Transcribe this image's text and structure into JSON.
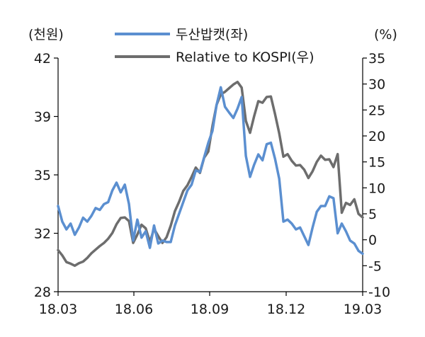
{
  "chart_data": {
    "type": "line",
    "title": "",
    "left_axis_unit": "(천원)",
    "right_axis_unit": "(%)",
    "x_ticks": [
      "18.03",
      "18.06",
      "18.09",
      "18.12",
      "19.03"
    ],
    "left_ticks": [
      "42",
      "39",
      "35",
      "32",
      "28"
    ],
    "right_ticks": [
      "35",
      "30",
      "25",
      "20",
      "15",
      "10",
      "5",
      "0",
      "-5",
      "-10"
    ],
    "left_ylim": [
      28,
      42
    ],
    "right_ylim": [
      -10,
      35
    ],
    "legend_position": "top-center",
    "series": [
      {
        "name": "두산밥캣(좌)",
        "axis": "left",
        "color": "#5b8fd0",
        "points": [
          [
            "18.03",
            33.4
          ],
          [
            "18.03+",
            32.6
          ],
          [
            "18.03+",
            32.2
          ],
          [
            "18.03+",
            32.5
          ],
          [
            "18.03+",
            31.9
          ],
          [
            "18.03+",
            32.3
          ],
          [
            "18.04",
            32.8
          ],
          [
            "18.04+",
            32.6
          ],
          [
            "18.04+",
            32.9
          ],
          [
            "18.04+",
            33.3
          ],
          [
            "18.04+",
            33.2
          ],
          [
            "18.04+",
            33.5
          ],
          [
            "18.05",
            33.6
          ],
          [
            "18.05+",
            34.2
          ],
          [
            "18.05+",
            34.6
          ],
          [
            "18.05+",
            34.1
          ],
          [
            "18.05+",
            34.5
          ],
          [
            "18.05+",
            33.5
          ],
          [
            "18.06",
            31.5
          ],
          [
            "18.06+",
            32.7
          ],
          [
            "18.06+",
            31.7
          ],
          [
            "18.06+",
            32.1
          ],
          [
            "18.06+",
            31.0
          ],
          [
            "18.06+",
            32.4
          ],
          [
            "18.07",
            31.3
          ],
          [
            "18.07+",
            31.5
          ],
          [
            "18.07+",
            31.4
          ],
          [
            "18.07+",
            31.4
          ],
          [
            "18.07+",
            32.4
          ],
          [
            "18.07+",
            33.0
          ],
          [
            "18.08",
            33.6
          ],
          [
            "18.08+",
            34.2
          ],
          [
            "18.08+",
            34.5
          ],
          [
            "18.08+",
            35.3
          ],
          [
            "18.08+",
            35.2
          ],
          [
            "18.08+",
            36.2
          ],
          [
            "18.09",
            37.2
          ],
          [
            "18.09+",
            38.0
          ],
          [
            "18.09+",
            39.6
          ],
          [
            "18.09+",
            40.5
          ],
          [
            "18.09+",
            39.5
          ],
          [
            "18.09+",
            39.2
          ],
          [
            "18.10",
            38.9
          ],
          [
            "18.10+",
            39.4
          ],
          [
            "18.10+",
            40.0
          ],
          [
            "18.10+",
            36.3
          ],
          [
            "18.10+",
            34.9
          ],
          [
            "18.10+",
            35.7
          ],
          [
            "18.11",
            36.4
          ],
          [
            "18.11+",
            36.0
          ],
          [
            "18.11+",
            37.1
          ],
          [
            "18.11+",
            37.2
          ],
          [
            "18.11+",
            36.1
          ],
          [
            "18.11+",
            34.8
          ],
          [
            "18.12",
            32.6
          ],
          [
            "18.12+",
            32.7
          ],
          [
            "18.12+",
            32.5
          ],
          [
            "18.12+",
            32.2
          ],
          [
            "18.12+",
            32.3
          ],
          [
            "18.12+",
            31.8
          ],
          [
            "19.01",
            31.2
          ],
          [
            "19.01+",
            32.3
          ],
          [
            "19.01+",
            33.1
          ],
          [
            "19.01+",
            33.4
          ],
          [
            "19.01+",
            33.4
          ],
          [
            "19.01+",
            33.9
          ],
          [
            "19.02",
            33.8
          ],
          [
            "19.02+",
            32.0
          ],
          [
            "19.02+",
            32.5
          ],
          [
            "19.02+",
            32.1
          ],
          [
            "19.02+",
            31.5
          ],
          [
            "19.02+",
            31.3
          ],
          [
            "19.03",
            30.8
          ],
          [
            "19.03+",
            30.6
          ]
        ]
      },
      {
        "name": "Relative to KOSPI(우)",
        "axis": "right",
        "color": "#6d6d6d",
        "points": [
          [
            "18.03",
            -2.0
          ],
          [
            "18.03+",
            -3.0
          ],
          [
            "18.03+",
            -4.3
          ],
          [
            "18.03+",
            -4.6
          ],
          [
            "18.03+",
            -5.0
          ],
          [
            "18.03+",
            -4.5
          ],
          [
            "18.04",
            -4.2
          ],
          [
            "18.04+",
            -3.5
          ],
          [
            "18.04+",
            -2.6
          ],
          [
            "18.04+",
            -1.9
          ],
          [
            "18.04+",
            -1.2
          ],
          [
            "18.04+",
            -0.6
          ],
          [
            "18.05",
            0.2
          ],
          [
            "18.05+",
            1.3
          ],
          [
            "18.05+",
            3.0
          ],
          [
            "18.05+",
            4.2
          ],
          [
            "18.05+",
            4.3
          ],
          [
            "18.05+",
            3.6
          ],
          [
            "18.06",
            -0.6
          ],
          [
            "18.06+",
            1.0
          ],
          [
            "18.06+",
            2.9
          ],
          [
            "18.06+",
            2.2
          ],
          [
            "18.06+",
            -0.4
          ],
          [
            "18.06+",
            2.1
          ],
          [
            "18.07",
            0.7
          ],
          [
            "18.07+",
            -0.6
          ],
          [
            "18.07+",
            0.5
          ],
          [
            "18.07+",
            2.7
          ],
          [
            "18.07+",
            5.5
          ],
          [
            "18.07+",
            7.3
          ],
          [
            "18.08",
            9.4
          ],
          [
            "18.08+",
            10.5
          ],
          [
            "18.08+",
            12.1
          ],
          [
            "18.08+",
            13.9
          ],
          [
            "18.08+",
            12.9
          ],
          [
            "18.08+",
            15.8
          ],
          [
            "18.09",
            17.0
          ],
          [
            "18.09+",
            21.9
          ],
          [
            "18.09+",
            26.0
          ],
          [
            "18.09+",
            28.0
          ],
          [
            "18.09+",
            28.5
          ],
          [
            "18.09+",
            29.2
          ],
          [
            "18.10",
            29.9
          ],
          [
            "18.10+",
            30.4
          ],
          [
            "18.10+",
            29.3
          ],
          [
            "18.10+",
            22.9
          ],
          [
            "18.10+",
            20.6
          ],
          [
            "18.10+",
            23.8
          ],
          [
            "18.11",
            26.7
          ],
          [
            "18.11+",
            26.4
          ],
          [
            "18.11+",
            27.5
          ],
          [
            "18.11+",
            27.6
          ],
          [
            "18.11+",
            24.2
          ],
          [
            "18.11+",
            20.5
          ],
          [
            "18.12",
            16.0
          ],
          [
            "18.12+",
            16.5
          ],
          [
            "18.12+",
            15.2
          ],
          [
            "18.12+",
            14.3
          ],
          [
            "18.12+",
            14.4
          ],
          [
            "18.12+",
            13.5
          ],
          [
            "19.01",
            11.9
          ],
          [
            "19.01+",
            13.2
          ],
          [
            "19.01+",
            15.0
          ],
          [
            "19.01+",
            16.2
          ],
          [
            "19.01+",
            15.4
          ],
          [
            "19.01+",
            15.5
          ],
          [
            "19.02",
            14.0
          ],
          [
            "19.02+",
            16.5
          ],
          [
            "19.02+",
            5.2
          ],
          [
            "19.02+",
            7.1
          ],
          [
            "19.02+",
            6.7
          ],
          [
            "19.02+",
            7.8
          ],
          [
            "19.03",
            5.0
          ],
          [
            "19.03+",
            4.3
          ]
        ]
      }
    ]
  }
}
